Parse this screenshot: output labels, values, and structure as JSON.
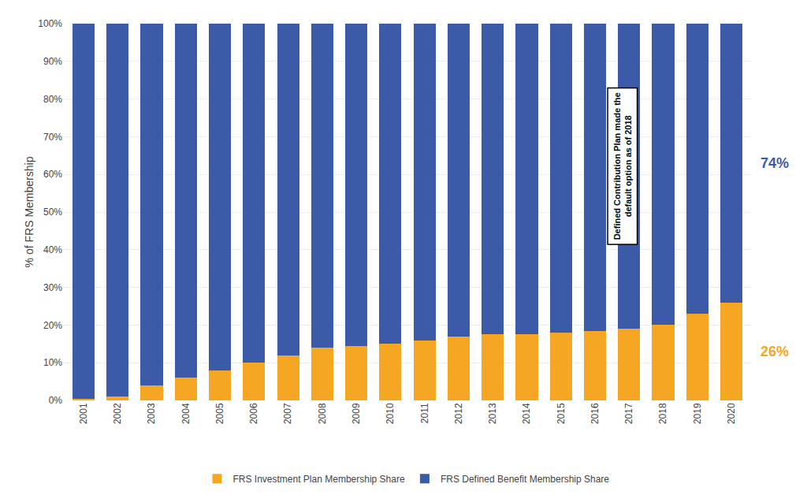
{
  "chart_data": {
    "type": "bar",
    "stacked": true,
    "categories": [
      "2001",
      "2002",
      "2003",
      "2004",
      "2005",
      "2006",
      "2007",
      "2008",
      "2009",
      "2010",
      "2011",
      "2012",
      "2013",
      "2014",
      "2015",
      "2016",
      "2017",
      "2018",
      "2019",
      "2020"
    ],
    "series": [
      {
        "name": "FRS Investment Plan Membership Share",
        "color": "#F5A623",
        "values": [
          0.5,
          1.0,
          4.0,
          6.0,
          8.0,
          10.0,
          12.0,
          14.0,
          14.5,
          15.0,
          16.0,
          17.0,
          17.5,
          17.5,
          18.0,
          18.5,
          19.0,
          20.0,
          23.0,
          26.0
        ]
      },
      {
        "name": "FRS Defined Benefit Membership Share",
        "color": "#3B5BA8",
        "values": [
          99.5,
          99.0,
          96.0,
          94.0,
          92.0,
          90.0,
          88.0,
          86.0,
          85.5,
          85.0,
          84.0,
          83.0,
          82.5,
          82.5,
          82.0,
          81.5,
          81.0,
          80.0,
          77.0,
          74.0
        ]
      }
    ],
    "ylabel": "% of FRS Membership",
    "ylim": [
      0,
      100
    ],
    "yticks": [
      {
        "value": 0,
        "label": "0%"
      },
      {
        "value": 10,
        "label": "10%"
      },
      {
        "value": 20,
        "label": "20%"
      },
      {
        "value": 30,
        "label": "30%"
      },
      {
        "value": 40,
        "label": "40%"
      },
      {
        "value": 50,
        "label": "50%"
      },
      {
        "value": 60,
        "label": "60%"
      },
      {
        "value": 70,
        "label": "70%"
      },
      {
        "value": 80,
        "label": "80%"
      },
      {
        "value": 90,
        "label": "90%"
      },
      {
        "value": 100,
        "label": "100%"
      }
    ],
    "grid": true,
    "legend": "bottom",
    "annotations": [
      {
        "text": "Defined Contribution Plan made the\ndefault option as of 2018",
        "x": "2018"
      },
      {
        "text": "74%",
        "color": "#3B5BA8"
      },
      {
        "text": "26%",
        "color": "#F5A623"
      }
    ]
  }
}
